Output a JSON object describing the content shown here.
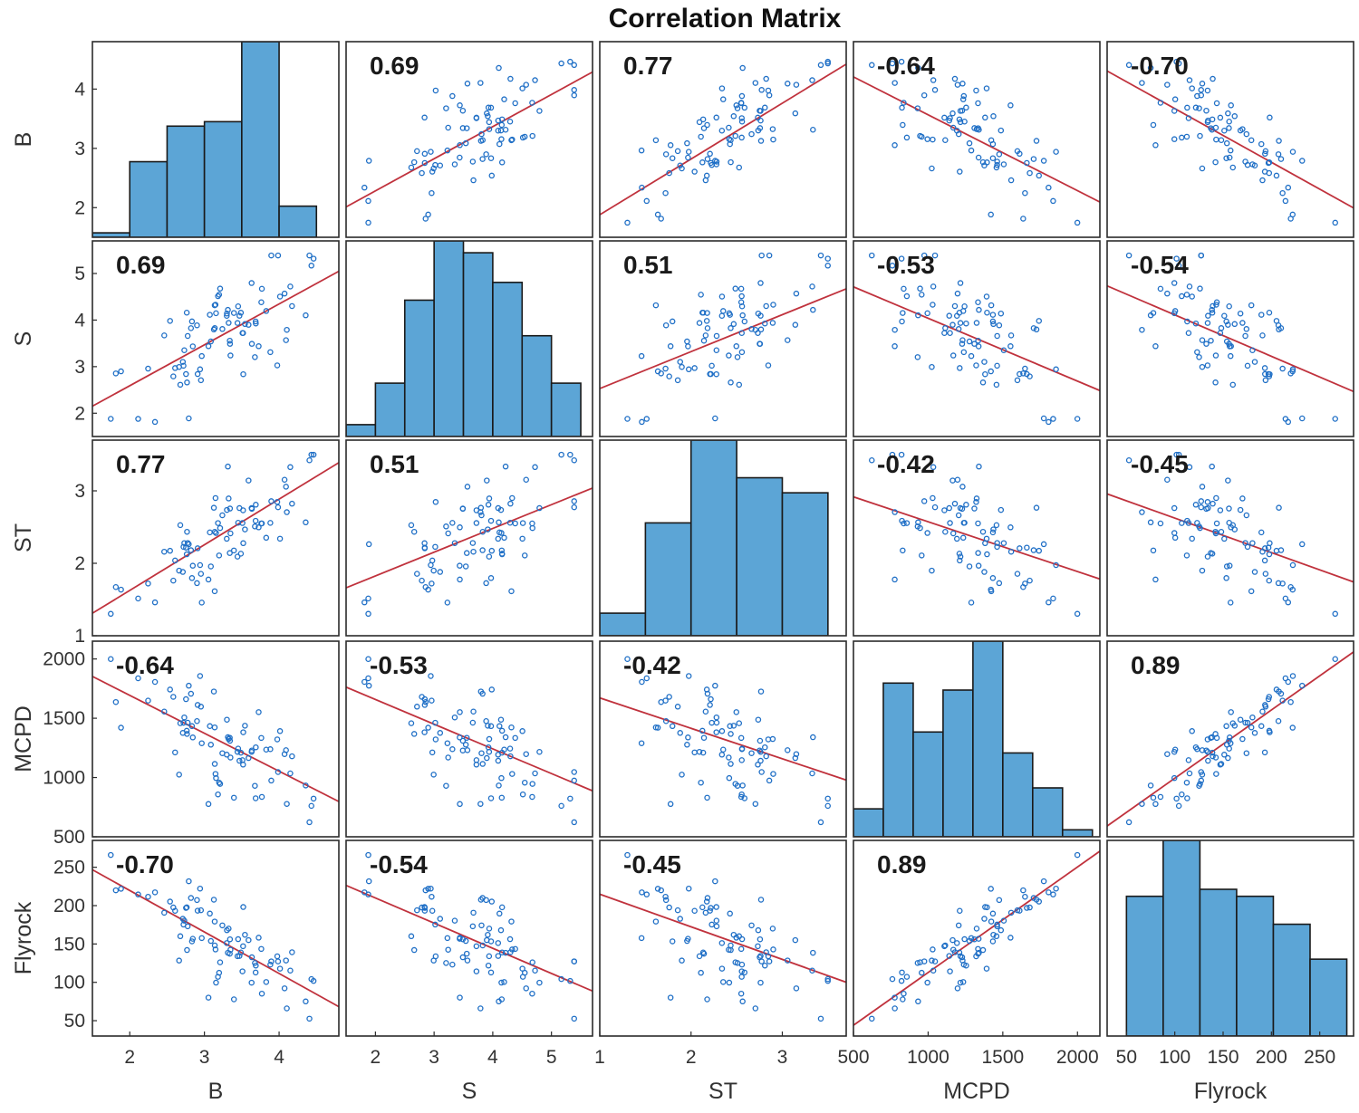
{
  "chart_data": {
    "type": "scatter-matrix",
    "title": "Correlation Matrix",
    "variables": [
      "B",
      "S",
      "ST",
      "MCPD",
      "Flyrock"
    ],
    "correlations": [
      [
        "",
        "0.69",
        "0.77",
        "-0.64",
        "-0.70"
      ],
      [
        "0.69",
        "",
        "0.51",
        "-0.53",
        "-0.54"
      ],
      [
        "0.77",
        "0.51",
        "",
        "-0.42",
        "-0.45"
      ],
      [
        "-0.64",
        "-0.53",
        "-0.42",
        "",
        "0.89"
      ],
      [
        "-0.70",
        "-0.54",
        "-0.45",
        "0.89",
        ""
      ]
    ],
    "axes": [
      {
        "name": "B",
        "min": 1.5,
        "max": 4.8,
        "ticks": [
          2,
          3,
          4
        ],
        "tick_labels": [
          "2",
          "3",
          "4"
        ]
      },
      {
        "name": "S",
        "min": 1.5,
        "max": 5.7,
        "ticks": [
          2,
          3,
          4,
          5
        ],
        "tick_labels": [
          "2",
          "3",
          "4",
          "5"
        ]
      },
      {
        "name": "ST",
        "min": 1.0,
        "max": 3.7,
        "ticks": [
          1,
          2,
          3
        ],
        "tick_labels": [
          "1",
          "2",
          "3"
        ]
      },
      {
        "name": "MCPD",
        "min": 500,
        "max": 2150,
        "ticks": [
          500,
          1000,
          1500,
          2000
        ],
        "tick_labels": [
          "500",
          "1000",
          "1500",
          "2000"
        ]
      },
      {
        "name": "Flyrock",
        "min": 30,
        "max": 285,
        "ticks": [
          50,
          100,
          150,
          200,
          250
        ],
        "tick_labels": [
          "50",
          "100",
          "150",
          "200",
          "250"
        ]
      }
    ],
    "histograms": [
      {
        "variable": "B",
        "edges": [
          1.5,
          2.0,
          2.5,
          3.0,
          3.5,
          4.0,
          4.5,
          5.0
        ],
        "counts": [
          1,
          17,
          25,
          26,
          44,
          7,
          0
        ]
      },
      {
        "variable": "S",
        "edges": [
          1.5,
          2.0,
          2.5,
          3.0,
          3.5,
          4.0,
          4.5,
          5.0,
          5.5
        ],
        "counts": [
          2,
          9,
          23,
          33,
          31,
          26,
          17,
          9
        ]
      },
      {
        "variable": "ST",
        "edges": [
          1.0,
          1.5,
          2.0,
          2.5,
          3.0,
          3.5
        ],
        "counts": [
          3,
          15,
          26,
          21,
          19
        ]
      },
      {
        "variable": "MCPD",
        "edges": [
          500,
          700,
          900,
          1100,
          1300,
          1500,
          1700,
          1900,
          2100
        ],
        "counts": [
          4,
          22,
          15,
          21,
          28,
          12,
          7,
          1
        ]
      },
      {
        "variable": "Flyrock",
        "edges": [
          50,
          88,
          126,
          164,
          202,
          240,
          278
        ],
        "counts": [
          20,
          28,
          21,
          20,
          16,
          11
        ]
      }
    ],
    "regression_line_color": "#c0323d",
    "marker_color": "#1f6fc6",
    "bar_color": "#5ca5d6"
  }
}
